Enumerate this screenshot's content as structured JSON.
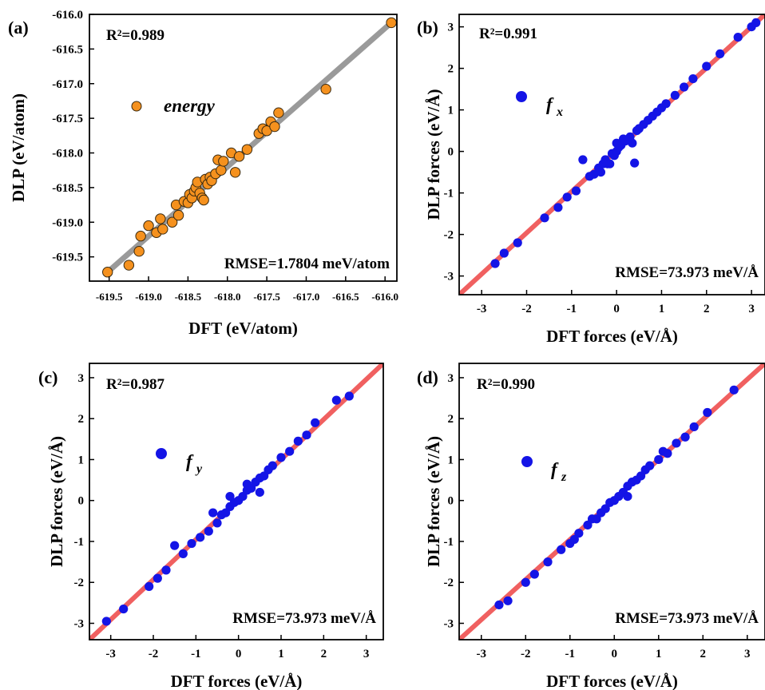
{
  "chart_data": [
    {
      "panel_label": "(a)",
      "type": "scatter",
      "xlabel": "DFT (eV/atom)",
      "ylabel": "DLP (eV/atom)",
      "xlim": [
        -619.75,
        -615.85
      ],
      "ylim": [
        -619.85,
        -616.0
      ],
      "xticks": [
        -619.5,
        -619.0,
        -618.5,
        -618.0,
        -617.5,
        -617.0,
        -616.5,
        -616.0
      ],
      "xtick_labels": [
        "-619.5",
        "-619.0",
        "-618.5",
        "-618.0",
        "-617.5",
        "-617.0",
        "-616.5",
        "-616.0"
      ],
      "yticks": [
        -619.5,
        -619.0,
        -618.5,
        -618.0,
        -617.5,
        -617.0,
        -616.5,
        -616.0
      ],
      "ytick_labels": [
        "-619.5",
        "-619.0",
        "-618.5",
        "-618.0",
        "-617.5",
        "-617.0",
        "-616.5",
        "-616.0"
      ],
      "r2_text": "R²=0.989",
      "rmse_text": "RMSE=1.7804 meV/atom",
      "legend": {
        "label": "energy",
        "position": "upper-left"
      },
      "marker_color": "#f5911e",
      "fit_color": "#9a9a9a",
      "fit_line": [
        [
          -619.52,
          -619.72
        ],
        [
          -615.92,
          -616.12
        ]
      ],
      "x": [
        -619.52,
        -619.25,
        -619.12,
        -619.1,
        -619.0,
        -618.85,
        -618.9,
        -618.82,
        -618.7,
        -618.65,
        -618.62,
        -618.55,
        -618.5,
        -618.48,
        -618.45,
        -618.42,
        -618.4,
        -618.38,
        -618.35,
        -618.32,
        -618.3,
        -618.28,
        -618.25,
        -618.22,
        -618.2,
        -618.15,
        -618.12,
        -618.08,
        -618.05,
        -617.95,
        -617.9,
        -617.85,
        -617.75,
        -617.6,
        -617.55,
        -617.5,
        -617.45,
        -617.4,
        -617.35,
        -616.75,
        -615.92
      ],
      "y": [
        -619.72,
        -619.62,
        -619.42,
        -619.2,
        -619.05,
        -618.95,
        -619.15,
        -619.1,
        -619.0,
        -618.75,
        -618.9,
        -618.7,
        -618.72,
        -618.6,
        -618.65,
        -618.55,
        -618.5,
        -618.42,
        -618.58,
        -618.65,
        -618.68,
        -618.38,
        -618.45,
        -618.35,
        -618.4,
        -618.3,
        -618.1,
        -618.25,
        -618.12,
        -618.0,
        -618.28,
        -618.05,
        -617.95,
        -617.72,
        -617.65,
        -617.68,
        -617.55,
        -617.62,
        -617.42,
        -617.08,
        -616.12
      ]
    },
    {
      "panel_label": "(b)",
      "type": "scatter",
      "xlabel": "DFT forces (eV/Å)",
      "ylabel": "DLP forces (eV/Å)",
      "xlim": [
        -3.5,
        3.3
      ],
      "ylim": [
        -3.45,
        3.3
      ],
      "xticks": [
        -3,
        -2,
        -1,
        0,
        1,
        2,
        3
      ],
      "xtick_labels": [
        "-3",
        "-2",
        "-1",
        "0",
        "1",
        "2",
        "3"
      ],
      "yticks": [
        -3,
        -2,
        -1,
        0,
        1,
        2,
        3
      ],
      "ytick_labels": [
        "-3",
        "-2",
        "-1",
        "0",
        "1",
        "2",
        "3"
      ],
      "r2_text": "R²=0.991",
      "rmse_text": "RMSE=73.973 meV/Å",
      "legend": {
        "label": "f",
        "subscript": "x",
        "position": "upper-left"
      },
      "marker_color": "#1414e6",
      "fit_color": "#f06060",
      "fit_line": [
        [
          -3.5,
          -3.45
        ],
        [
          3.3,
          3.3
        ]
      ],
      "x": [
        -2.7,
        -2.5,
        -2.2,
        -1.6,
        -1.3,
        -1.1,
        -0.9,
        -0.75,
        -0.6,
        -0.5,
        -0.4,
        -0.3,
        -0.25,
        -0.2,
        -0.1,
        -0.05,
        0.0,
        0.05,
        0.1,
        0.2,
        0.3,
        0.4,
        0.45,
        0.5,
        0.6,
        0.7,
        0.8,
        0.9,
        1.0,
        1.1,
        1.3,
        1.5,
        1.7,
        2.0,
        2.3,
        2.7,
        3.0,
        3.1,
        0.0,
        0.15,
        -0.15,
        0.35,
        -0.35
      ],
      "y": [
        -2.7,
        -2.45,
        -2.2,
        -1.6,
        -1.35,
        -1.1,
        -0.95,
        -0.2,
        -0.6,
        -0.55,
        -0.4,
        -0.3,
        -0.2,
        -0.3,
        -0.05,
        -0.1,
        0.0,
        0.1,
        0.15,
        0.25,
        0.35,
        -0.28,
        0.5,
        0.55,
        0.65,
        0.75,
        0.85,
        0.95,
        1.05,
        1.15,
        1.35,
        1.55,
        1.75,
        2.05,
        2.35,
        2.75,
        3.0,
        3.1,
        0.2,
        0.3,
        -0.3,
        0.2,
        -0.5
      ]
    },
    {
      "panel_label": "(c)",
      "type": "scatter",
      "xlabel": "DFT forces (eV/Å)",
      "ylabel": "DLP forces (eV/Å)",
      "xlim": [
        -3.5,
        3.4
      ],
      "ylim": [
        -3.4,
        3.35
      ],
      "xticks": [
        -3,
        -2,
        -1,
        0,
        1,
        2,
        3
      ],
      "xtick_labels": [
        "-3",
        "-2",
        "-1",
        "0",
        "1",
        "2",
        "3"
      ],
      "yticks": [
        -3,
        -2,
        -1,
        0,
        1,
        2,
        3
      ],
      "ytick_labels": [
        "-3",
        "-2",
        "-1",
        "0",
        "1",
        "2",
        "3"
      ],
      "r2_text": "R²=0.987",
      "rmse_text": "RMSE=73.973 meV/Å",
      "legend": {
        "label": "f",
        "subscript": "y",
        "position": "upper-left"
      },
      "marker_color": "#1414e6",
      "fit_color": "#f06060",
      "fit_line": [
        [
          -3.5,
          -3.4
        ],
        [
          3.4,
          3.35
        ]
      ],
      "x": [
        -3.1,
        -2.7,
        -2.1,
        -1.9,
        -1.7,
        -1.5,
        -1.3,
        -1.1,
        -0.9,
        -0.7,
        -0.5,
        -0.4,
        -0.3,
        -0.2,
        -0.1,
        0.0,
        0.1,
        0.2,
        0.3,
        0.4,
        0.5,
        0.6,
        0.7,
        0.8,
        1.0,
        1.2,
        1.4,
        1.6,
        1.8,
        2.3,
        2.6,
        -0.6,
        0.5,
        -0.2,
        0.2
      ],
      "y": [
        -2.95,
        -2.65,
        -2.1,
        -1.9,
        -1.7,
        -1.1,
        -1.3,
        -1.05,
        -0.9,
        -0.75,
        -0.55,
        -0.35,
        -0.3,
        -0.15,
        -0.05,
        0.0,
        0.1,
        0.25,
        0.3,
        0.45,
        0.55,
        0.6,
        0.75,
        0.85,
        1.05,
        1.2,
        1.45,
        1.6,
        1.9,
        2.45,
        2.55,
        -0.3,
        0.2,
        0.1,
        0.4
      ]
    },
    {
      "panel_label": "(d)",
      "type": "scatter",
      "xlabel": "DFT forces (eV/Å)",
      "ylabel": "DLP forces (eV/Å)",
      "xlim": [
        -3.5,
        3.4
      ],
      "ylim": [
        -3.4,
        3.35
      ],
      "xticks": [
        -3,
        -2,
        -1,
        0,
        1,
        2,
        3
      ],
      "xtick_labels": [
        "-3",
        "-2",
        "-1",
        "0",
        "1",
        "2",
        "3"
      ],
      "yticks": [
        -3,
        -2,
        -1,
        0,
        1,
        2,
        3
      ],
      "ytick_labels": [
        "-3",
        "-2",
        "-1",
        "0",
        "1",
        "2",
        "3"
      ],
      "r2_text": "R²=0.990",
      "rmse_text": "RMSE=73.973 meV/Å",
      "legend": {
        "label": "f",
        "subscript": "z",
        "position": "upper-left"
      },
      "marker_color": "#1414e6",
      "fit_color": "#f06060",
      "fit_line": [
        [
          -3.5,
          -3.4
        ],
        [
          3.4,
          3.35
        ]
      ],
      "x": [
        -2.6,
        -2.4,
        -2.0,
        -1.8,
        -1.5,
        -1.2,
        -1.0,
        -0.8,
        -0.6,
        -0.4,
        -0.3,
        -0.2,
        -0.1,
        0.0,
        0.1,
        0.2,
        0.3,
        0.4,
        0.5,
        0.6,
        0.7,
        0.8,
        1.0,
        1.2,
        1.4,
        1.6,
        1.8,
        2.1,
        2.7,
        -0.5,
        0.3,
        1.1,
        -0.9
      ],
      "y": [
        -2.55,
        -2.45,
        -2.0,
        -1.8,
        -1.5,
        -1.2,
        -1.05,
        -0.8,
        -0.6,
        -0.45,
        -0.3,
        -0.2,
        -0.05,
        0.0,
        0.1,
        0.2,
        0.35,
        0.45,
        0.5,
        0.6,
        0.75,
        0.85,
        1.0,
        1.15,
        1.4,
        1.55,
        1.8,
        2.15,
        2.7,
        -0.45,
        0.1,
        1.2,
        -0.95
      ]
    }
  ]
}
